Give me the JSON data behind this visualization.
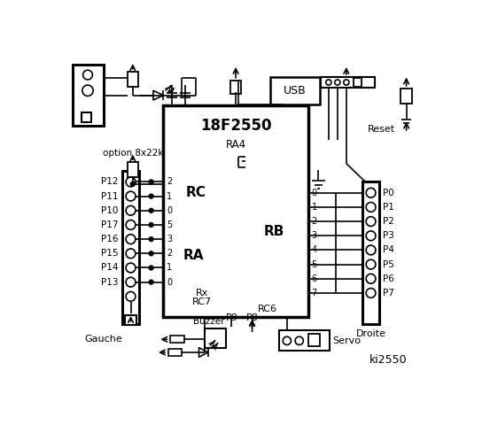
{
  "bg_color": "#ffffff",
  "line_color": "#000000",
  "title": "ki2550",
  "chip_label": "18F2550",
  "rc_label": "RC",
  "ra_label": "RA",
  "ra4_label": "RA4",
  "rb_label": "RB",
  "rx_label": "Rx",
  "rc7_label": "RC7",
  "rc6_label": "RC6",
  "left_pins": [
    "P12",
    "P11",
    "P10",
    "P17",
    "P16",
    "P15",
    "P14",
    "P13"
  ],
  "right_pins": [
    "P0",
    "P1",
    "P2",
    "P3",
    "P4",
    "P5",
    "P6",
    "P7"
  ],
  "rc_nums": [
    "2",
    "1",
    "0",
    "5",
    "3",
    "2",
    "1",
    "0"
  ],
  "rb_nums": [
    "0",
    "1",
    "2",
    "3",
    "4",
    "5",
    "6",
    "7"
  ],
  "gauche_label": "Gauche",
  "droite_label": "Droite",
  "usb_label": "USB",
  "reset_label": "Reset",
  "servo_label": "Servo",
  "buzzer_label": "Buzzer",
  "p8_label": "P8",
  "p9_label": "P9",
  "option_label": "option 8x22k"
}
